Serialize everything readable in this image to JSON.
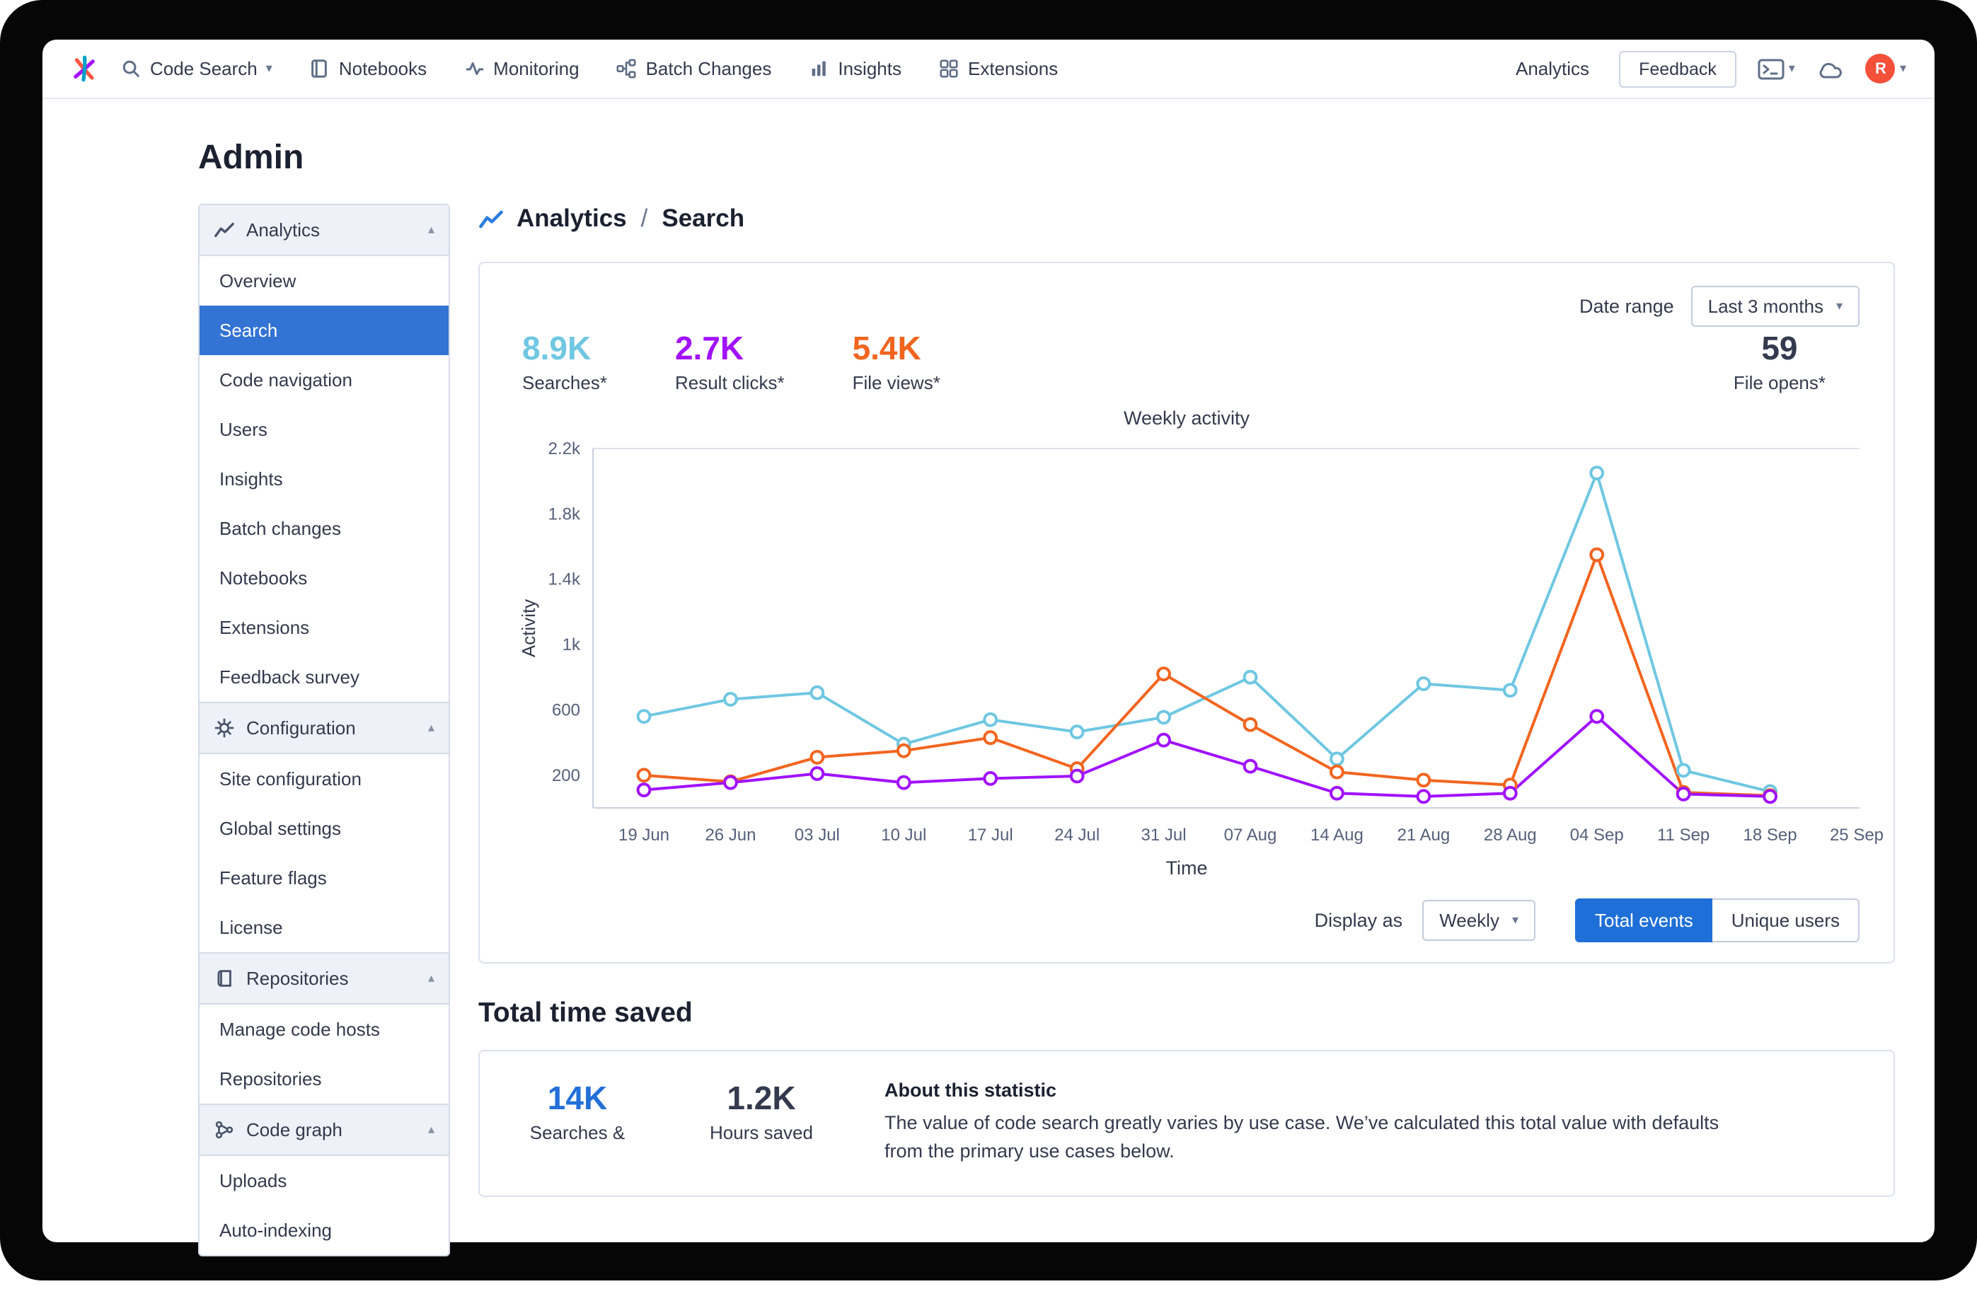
{
  "navbar": {
    "items": [
      {
        "label": "Code Search",
        "icon": "search-icon",
        "chevron": true
      },
      {
        "label": "Notebooks",
        "icon": "notebook-icon"
      },
      {
        "label": "Monitoring",
        "icon": "monitoring-icon"
      },
      {
        "label": "Batch Changes",
        "icon": "batch-changes-icon"
      },
      {
        "label": "Insights",
        "icon": "insights-icon"
      },
      {
        "label": "Extensions",
        "icon": "extensions-icon"
      }
    ],
    "right": {
      "analytics": "Analytics",
      "feedback": "Feedback",
      "avatar_initial": "R"
    }
  },
  "page": {
    "title": "Admin"
  },
  "sidebar": {
    "groups": [
      {
        "label": "Analytics",
        "icon": "line-chart-icon",
        "items": [
          "Overview",
          "Search",
          "Code navigation",
          "Users",
          "Insights",
          "Batch changes",
          "Notebooks",
          "Extensions",
          "Feedback survey"
        ],
        "selected": "Search"
      },
      {
        "label": "Configuration",
        "icon": "gear-icon",
        "items": [
          "Site configuration",
          "Global settings",
          "Feature flags",
          "License"
        ]
      },
      {
        "label": "Repositories",
        "icon": "repo-icon",
        "items": [
          "Manage code hosts",
          "Repositories"
        ]
      },
      {
        "label": "Code graph",
        "icon": "code-graph-icon",
        "items": [
          "Uploads",
          "Auto-indexing"
        ]
      }
    ]
  },
  "breadcrumb": {
    "section": "Analytics",
    "separator": "/",
    "page": "Search"
  },
  "analytics_card": {
    "date_range": {
      "label": "Date range",
      "value": "Last 3 months"
    },
    "stats": [
      {
        "value": "8.9K",
        "label": "Searches*",
        "color": "#6fc7e2"
      },
      {
        "value": "2.7K",
        "label": "Result clicks*",
        "color": "#a112ff"
      },
      {
        "value": "5.4K",
        "label": "File views*",
        "color": "#f2651f"
      },
      {
        "value": "59",
        "label": "File opens*",
        "color": "#343a4d"
      }
    ],
    "display_as": {
      "label": "Display as",
      "value": "Weekly"
    },
    "toggles": [
      {
        "label": "Total events",
        "active": true
      },
      {
        "label": "Unique users",
        "active": false
      }
    ]
  },
  "chart_data": {
    "type": "line",
    "title": "Weekly activity",
    "xlabel": "Time",
    "ylabel": "Activity",
    "ylim": [
      0,
      2200
    ],
    "grid": "top-line-only",
    "legend": "none",
    "yticks": [
      {
        "value": 200,
        "label": "200"
      },
      {
        "value": 600,
        "label": "600"
      },
      {
        "value": 1000,
        "label": "1k"
      },
      {
        "value": 1400,
        "label": "1.4k"
      },
      {
        "value": 1800,
        "label": "1.8k"
      },
      {
        "value": 2200,
        "label": "2.2k"
      }
    ],
    "categories": [
      "19 Jun",
      "26 Jun",
      "03 Jul",
      "10 Jul",
      "17 Jul",
      "24 Jul",
      "31 Jul",
      "07 Aug",
      "14 Aug",
      "21 Aug",
      "28 Aug",
      "04 Sep",
      "11 Sep",
      "18 Sep",
      "25 Sep"
    ],
    "series": [
      {
        "name": "Searches",
        "color": "#6fc7e2",
        "values": [
          560,
          665,
          705,
          390,
          540,
          465,
          555,
          800,
          300,
          760,
          720,
          2050,
          230,
          100
        ]
      },
      {
        "name": "File views",
        "color": "#f2651f",
        "values": [
          200,
          160,
          310,
          350,
          430,
          240,
          820,
          510,
          220,
          170,
          140,
          1550,
          95,
          75
        ]
      },
      {
        "name": "Result clicks",
        "color": "#a112ff",
        "values": [
          110,
          155,
          210,
          155,
          180,
          195,
          415,
          255,
          90,
          70,
          90,
          560,
          85,
          70
        ]
      }
    ]
  },
  "time_saved": {
    "heading": "Total time saved",
    "stats": [
      {
        "value": "14K",
        "label": "Searches &",
        "color": "#2370d8"
      },
      {
        "value": "1.2K",
        "label": "Hours saved",
        "color": "#343a4d"
      }
    ],
    "about": {
      "title": "About this statistic",
      "text": "The value of code search greatly varies by use case. We’ve calculated this total value with defaults from the primary use cases below."
    }
  }
}
